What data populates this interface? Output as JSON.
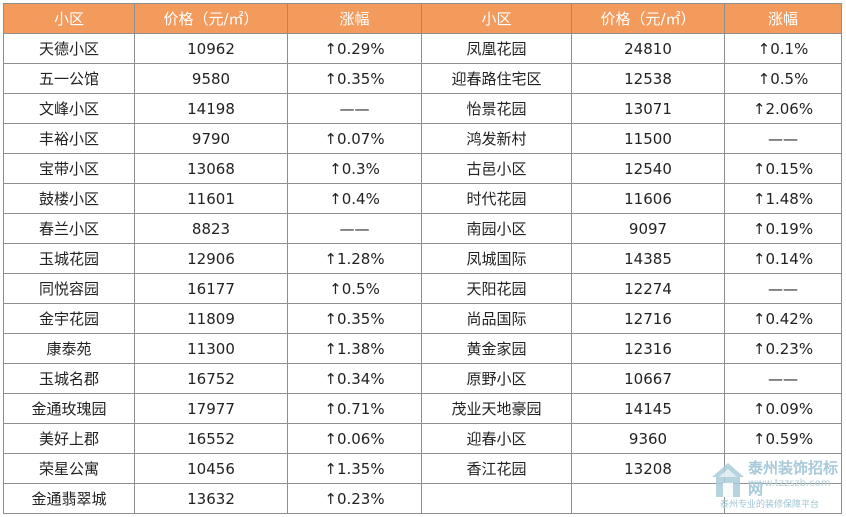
{
  "headers": [
    "小区",
    "价格（元/㎡）",
    "涨幅",
    "小区",
    "价格（元/㎡）",
    "涨幅"
  ],
  "rows": [
    {
      "left": [
        "天德小区",
        "10962",
        "↑0.29%"
      ],
      "right": [
        "凤凰花园",
        "24810",
        "↑0.1%"
      ]
    },
    {
      "left": [
        "五一公馆",
        "9580",
        "↑0.35%"
      ],
      "right": [
        "迎春路住宅区",
        "12538",
        "↑0.5%"
      ]
    },
    {
      "left": [
        "文峰小区",
        "14198",
        "——"
      ],
      "right": [
        "怡景花园",
        "13071",
        "↑2.06%"
      ]
    },
    {
      "left": [
        "丰裕小区",
        "9790",
        "↑0.07%"
      ],
      "right": [
        "鸿发新村",
        "11500",
        "——"
      ]
    },
    {
      "left": [
        "宝带小区",
        "13068",
        "↑0.3%"
      ],
      "right": [
        "古邑小区",
        "12540",
        "↑0.15%"
      ]
    },
    {
      "left": [
        "鼓楼小区",
        "11601",
        "↑0.4%"
      ],
      "right": [
        "时代花园",
        "11606",
        "↑1.48%"
      ]
    },
    {
      "left": [
        "春兰小区",
        "8823",
        "——"
      ],
      "right": [
        "南园小区",
        "9097",
        "↑0.19%"
      ]
    },
    {
      "left": [
        "玉城花园",
        "12906",
        "↑1.28%"
      ],
      "right": [
        "凤城国际",
        "14385",
        "↑0.14%"
      ]
    },
    {
      "left": [
        "同悦容园",
        "16177",
        "↑0.5%"
      ],
      "right": [
        "天阳花园",
        "12274",
        "——"
      ]
    },
    {
      "left": [
        "金宇花园",
        "11809",
        "↑0.35%"
      ],
      "right": [
        "尚品国际",
        "12716",
        "↑0.42%"
      ]
    },
    {
      "left": [
        "康泰苑",
        "11300",
        "↑1.38%"
      ],
      "right": [
        "黄金家园",
        "12316",
        "↑0.23%"
      ]
    },
    {
      "left": [
        "玉城名郡",
        "16752",
        "↑0.34%"
      ],
      "right": [
        "原野小区",
        "10667",
        "——"
      ]
    },
    {
      "left": [
        "金通玫瑰园",
        "17977",
        "↑0.71%"
      ],
      "right": [
        "茂业天地豪园",
        "14145",
        "↑0.09%"
      ]
    },
    {
      "left": [
        "美好上郡",
        "16552",
        "↑0.06%"
      ],
      "right": [
        "迎春小区",
        "9360",
        "↑0.59%"
      ]
    },
    {
      "left": [
        "荣星公寓",
        "10456",
        "↑1.35%"
      ],
      "right": [
        "香江花园",
        "13208",
        ""
      ]
    },
    {
      "left": [
        "金通翡翠城",
        "13632",
        "↑0.23%"
      ],
      "right": [
        "",
        "",
        ""
      ]
    }
  ],
  "watermark": {
    "title": "泰州装饰招标网",
    "url": "www.tzzszb.com",
    "subtitle": "泰州专业的装修保障平台"
  },
  "colors": {
    "header_bg": "#f39a5d",
    "header_text": "#ffffff",
    "border": "#8e8e8e",
    "watermark": "#9fc4d6"
  }
}
